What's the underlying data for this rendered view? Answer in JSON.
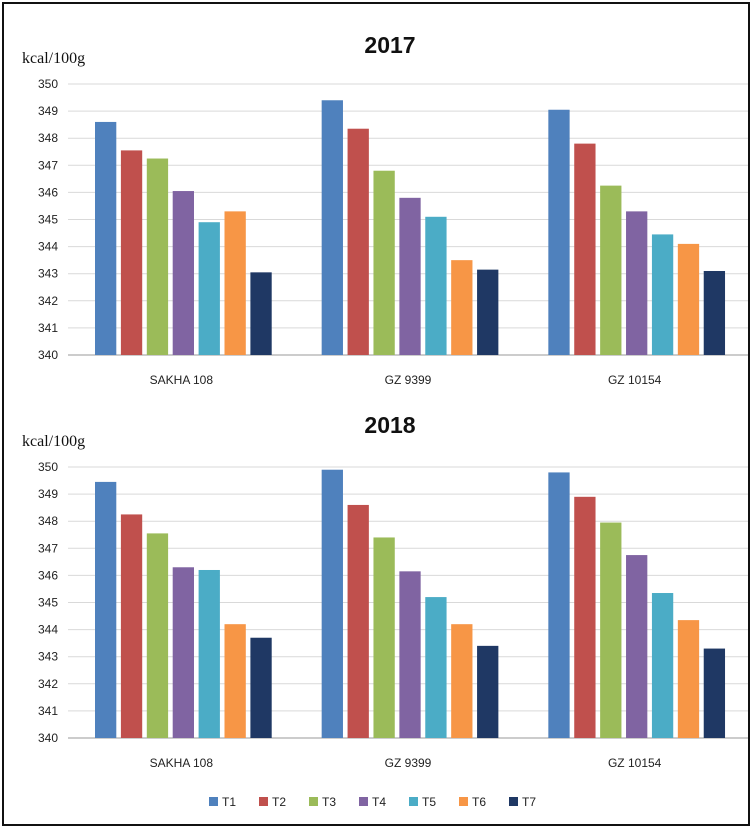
{
  "chart_data": [
    {
      "type": "bar",
      "title": "2017",
      "ylabel": "kcal/100g",
      "categories": [
        "SAKHA 108",
        "GZ 9399",
        "GZ 10154"
      ],
      "ylim": [
        340,
        350
      ],
      "yticks": [
        340,
        341,
        342,
        343,
        344,
        345,
        346,
        347,
        348,
        349,
        350
      ],
      "grid": true,
      "series": [
        {
          "name": "T1",
          "color": "#4f81bd",
          "values": [
            348.6,
            349.4,
            349.05
          ]
        },
        {
          "name": "T2",
          "color": "#c0504d",
          "values": [
            347.55,
            348.35,
            347.8
          ]
        },
        {
          "name": "T3",
          "color": "#9bbb59",
          "values": [
            347.25,
            346.8,
            346.25
          ]
        },
        {
          "name": "T4",
          "color": "#8064a2",
          "values": [
            346.05,
            345.8,
            345.3
          ]
        },
        {
          "name": "T5",
          "color": "#4bacc6",
          "values": [
            344.9,
            345.1,
            344.45
          ]
        },
        {
          "name": "T6",
          "color": "#f79646",
          "values": [
            345.3,
            343.5,
            344.1
          ]
        },
        {
          "name": "T7",
          "color": "#1f3864",
          "values": [
            343.05,
            343.15,
            343.1
          ]
        }
      ]
    },
    {
      "type": "bar",
      "title": "2018",
      "ylabel": "kcal/100g",
      "categories": [
        "SAKHA 108",
        "GZ 9399",
        "GZ 10154"
      ],
      "ylim": [
        340,
        350
      ],
      "yticks": [
        340,
        341,
        342,
        343,
        344,
        345,
        346,
        347,
        348,
        349,
        350
      ],
      "grid": true,
      "series": [
        {
          "name": "T1",
          "color": "#4f81bd",
          "values": [
            349.45,
            349.9,
            349.8
          ]
        },
        {
          "name": "T2",
          "color": "#c0504d",
          "values": [
            348.25,
            348.6,
            348.9
          ]
        },
        {
          "name": "T3",
          "color": "#9bbb59",
          "values": [
            347.55,
            347.4,
            347.95
          ]
        },
        {
          "name": "T4",
          "color": "#8064a2",
          "values": [
            346.3,
            346.15,
            346.75
          ]
        },
        {
          "name": "T5",
          "color": "#4bacc6",
          "values": [
            346.2,
            345.2,
            345.35
          ]
        },
        {
          "name": "T6",
          "color": "#f79646",
          "values": [
            344.2,
            344.2,
            344.35
          ]
        },
        {
          "name": "T7",
          "color": "#1f3864",
          "values": [
            343.7,
            343.4,
            343.3
          ]
        }
      ]
    }
  ],
  "legend": {
    "position": "bottom",
    "items": [
      {
        "label": "T1",
        "color": "#4f81bd"
      },
      {
        "label": "T2",
        "color": "#c0504d"
      },
      {
        "label": "T3",
        "color": "#9bbb59"
      },
      {
        "label": "T4",
        "color": "#8064a2"
      },
      {
        "label": "T5",
        "color": "#4bacc6"
      },
      {
        "label": "T6",
        "color": "#f79646"
      },
      {
        "label": "T7",
        "color": "#1f3864"
      }
    ]
  }
}
